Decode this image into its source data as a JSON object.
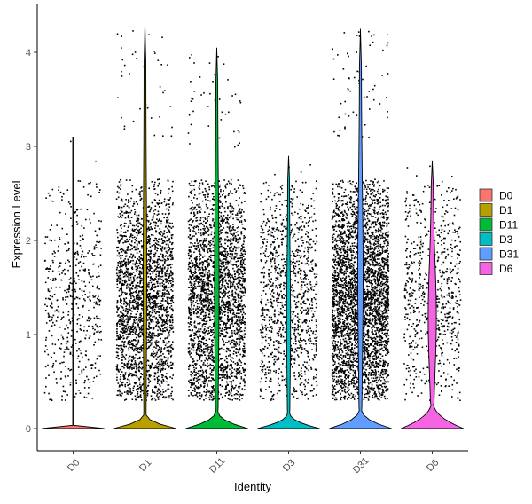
{
  "chart_data": {
    "type": "violin",
    "xlabel": "Identity",
    "ylabel": "Expression Level",
    "ylim": [
      -0.25,
      4.5
    ],
    "yticks": [
      0,
      1,
      2,
      3,
      4
    ],
    "categories": [
      "D0",
      "D1",
      "D11",
      "D3",
      "D31",
      "D6"
    ],
    "legend": {
      "position": "right",
      "entries": [
        "D0",
        "D1",
        "D11",
        "D3",
        "D31",
        "D6"
      ]
    },
    "grid": false,
    "points": "jittered per-cell expression values (black)",
    "series": [
      {
        "name": "D0",
        "color": "#F8766D",
        "max": 3.1,
        "min": 0,
        "zero_fraction": 0.97,
        "point_count": 520,
        "nonzero_range": [
          0.3,
          3.1
        ]
      },
      {
        "name": "D1",
        "color": "#B79F00",
        "max": 4.3,
        "min": 0,
        "zero_fraction": 0.88,
        "point_count": 2400,
        "nonzero_range": [
          0.3,
          4.3
        ]
      },
      {
        "name": "D11",
        "color": "#00BA38",
        "max": 4.05,
        "min": 0,
        "zero_fraction": 0.8,
        "point_count": 2600,
        "nonzero_range": [
          0.3,
          4.05
        ]
      },
      {
        "name": "D3",
        "color": "#00BFC4",
        "max": 2.9,
        "min": 0,
        "zero_fraction": 0.85,
        "point_count": 1100,
        "nonzero_range": [
          0.3,
          2.9
        ]
      },
      {
        "name": "D31",
        "color": "#619CFF",
        "max": 4.25,
        "min": 0,
        "zero_fraction": 0.75,
        "point_count": 3600,
        "nonzero_range": [
          0.3,
          4.25
        ]
      },
      {
        "name": "D6",
        "color": "#F564E3",
        "max": 2.85,
        "min": 0,
        "zero_fraction": 0.55,
        "point_count": 700,
        "nonzero_range": [
          0.3,
          2.85
        ]
      }
    ]
  }
}
